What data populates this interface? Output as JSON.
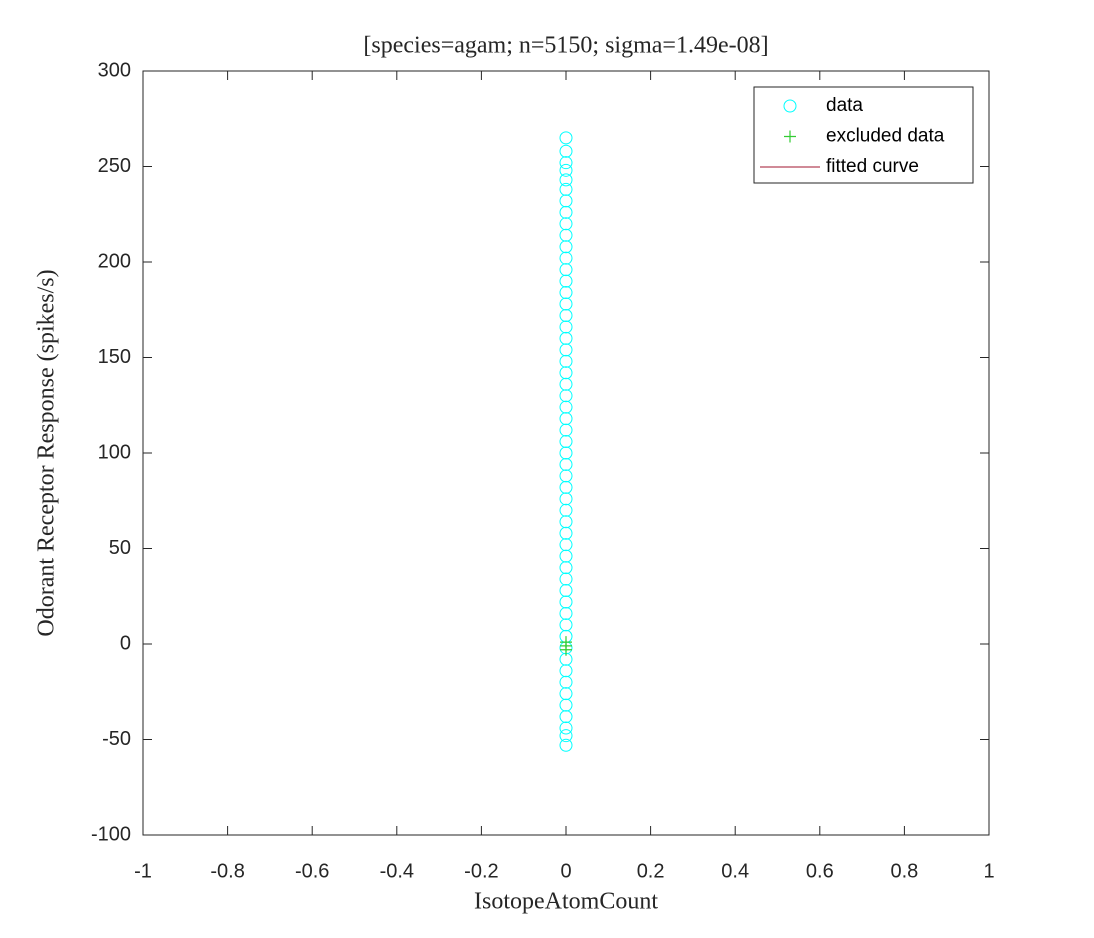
{
  "chart_data": {
    "type": "scatter",
    "title": "[species=agam; n=5150; sigma=1.49e-08]",
    "x_label": "IsotopeAtomCount",
    "y_label": "Odorant Receptor Response (spikes/s)",
    "xlim": [
      -1,
      1
    ],
    "ylim": [
      -100,
      300
    ],
    "xticks": [
      -1,
      -0.8,
      -0.6,
      -0.4,
      -0.2,
      0,
      0.2,
      0.4,
      0.6,
      0.8,
      1
    ],
    "yticks": [
      -100,
      -50,
      0,
      50,
      100,
      150,
      200,
      250,
      300
    ],
    "legend": "upper right",
    "series": [
      {
        "name": "data",
        "color": "#00ffff",
        "marker": "circle",
        "x": [
          0,
          0,
          0,
          0,
          0,
          0,
          0,
          0,
          0,
          0,
          0,
          0,
          0,
          0,
          0,
          0,
          0,
          0,
          0,
          0,
          0,
          0,
          0,
          0,
          0,
          0,
          0,
          0,
          0,
          0,
          0,
          0,
          0,
          0,
          0,
          0,
          0,
          0,
          0,
          0,
          0,
          0,
          0,
          0,
          0,
          0,
          0,
          0,
          0,
          0,
          0,
          0,
          0,
          0,
          0
        ],
        "values": [
          265,
          258,
          252,
          248,
          243,
          238,
          232,
          226,
          220,
          214,
          208,
          202,
          196,
          190,
          184,
          178,
          172,
          166,
          160,
          154,
          148,
          142,
          136,
          130,
          124,
          118,
          112,
          106,
          100,
          94,
          88,
          82,
          76,
          70,
          64,
          58,
          52,
          46,
          40,
          34,
          28,
          22,
          16,
          10,
          4,
          -2,
          -8,
          -14,
          -20,
          -26,
          -32,
          -38,
          -44,
          -48,
          -53
        ]
      },
      {
        "name": "excluded data",
        "color": "#33cc33",
        "marker": "plus",
        "x": [
          0,
          0,
          0
        ],
        "values": [
          1,
          -1,
          -3
        ]
      },
      {
        "name": "fitted curve",
        "color": "#a2142f",
        "marker": "line"
      }
    ]
  }
}
